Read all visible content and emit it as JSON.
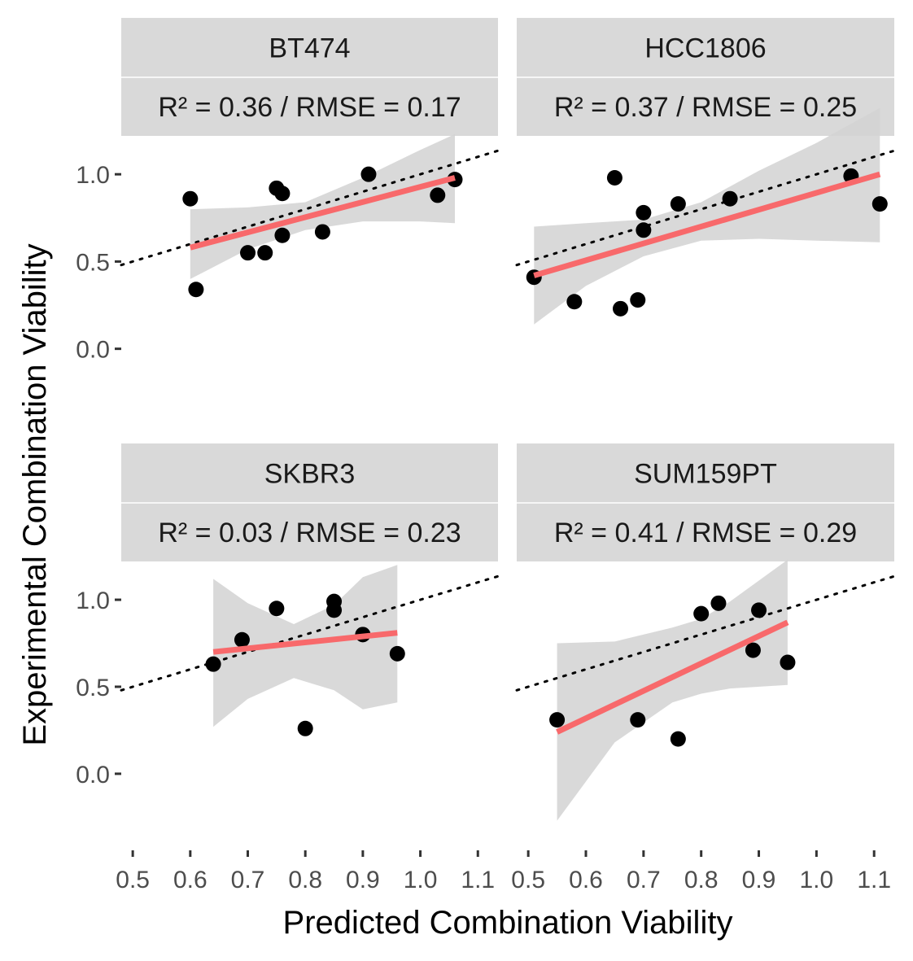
{
  "chart_data": {
    "type": "scatter",
    "xlabel": "Predicted Combination Viability",
    "ylabel": "Experimental Combination Viability",
    "xlim": [
      0.48,
      1.135
    ],
    "ylim": [
      -0.44,
      1.22
    ],
    "x_ticks": [
      0.5,
      0.6,
      0.7,
      0.8,
      0.9,
      1.0,
      1.1
    ],
    "x_tick_labels": [
      "0.5",
      "0.6",
      "0.7",
      "0.8",
      "0.9",
      "1.0",
      "1.1"
    ],
    "y_ticks": [
      0.0,
      0.5,
      1.0
    ],
    "y_tick_labels": [
      "0.0",
      "0.5",
      "1.0"
    ],
    "reference_line": "y = x",
    "grid": false,
    "panels": [
      {
        "name": "BT474",
        "stat": "R² = 0.36 / RMSE = 0.17",
        "points": [
          [
            0.6,
            0.86
          ],
          [
            0.61,
            0.34
          ],
          [
            0.7,
            0.55
          ],
          [
            0.73,
            0.55
          ],
          [
            0.75,
            0.92
          ],
          [
            0.76,
            0.89
          ],
          [
            0.76,
            0.65
          ],
          [
            0.83,
            0.67
          ],
          [
            0.91,
            1.0
          ],
          [
            1.03,
            0.88
          ],
          [
            1.06,
            0.97
          ]
        ],
        "fit": {
          "x": [
            0.6,
            1.06
          ],
          "y": [
            0.58,
            0.98
          ]
        },
        "band": {
          "x": [
            0.6,
            0.7,
            0.8,
            0.9,
            1.0,
            1.06
          ],
          "lower": [
            0.4,
            0.57,
            0.68,
            0.73,
            0.73,
            0.72
          ],
          "upper": [
            0.8,
            0.81,
            0.84,
            0.98,
            1.14,
            1.23
          ]
        }
      },
      {
        "name": "HCC1806",
        "stat": "R² = 0.37 / RMSE = 0.25",
        "points": [
          [
            0.51,
            0.41
          ],
          [
            0.58,
            0.27
          ],
          [
            0.65,
            0.98
          ],
          [
            0.66,
            0.23
          ],
          [
            0.69,
            0.28
          ],
          [
            0.7,
            0.68
          ],
          [
            0.7,
            0.78
          ],
          [
            0.76,
            0.83
          ],
          [
            0.85,
            0.86
          ],
          [
            1.06,
            0.99
          ],
          [
            1.11,
            0.83
          ]
        ],
        "fit": {
          "x": [
            0.51,
            1.11
          ],
          "y": [
            0.42,
            1.0
          ]
        },
        "band": {
          "x": [
            0.51,
            0.6,
            0.7,
            0.8,
            0.9,
            1.0,
            1.11
          ],
          "lower": [
            0.14,
            0.36,
            0.53,
            0.62,
            0.63,
            0.62,
            0.61
          ],
          "upper": [
            0.7,
            0.72,
            0.74,
            0.84,
            1.02,
            1.18,
            1.38
          ]
        }
      },
      {
        "name": "SKBR3",
        "stat": "R² = 0.03 / RMSE = 0.23",
        "points": [
          [
            0.64,
            0.63
          ],
          [
            0.69,
            0.77
          ],
          [
            0.75,
            0.95
          ],
          [
            0.8,
            0.26
          ],
          [
            0.85,
            0.99
          ],
          [
            0.85,
            0.94
          ],
          [
            0.9,
            0.8
          ],
          [
            0.96,
            0.69
          ]
        ],
        "fit": {
          "x": [
            0.64,
            0.96
          ],
          "y": [
            0.7,
            0.81
          ]
        },
        "band": {
          "x": [
            0.64,
            0.7,
            0.78,
            0.85,
            0.9,
            0.96
          ],
          "lower": [
            0.27,
            0.43,
            0.55,
            0.48,
            0.37,
            0.41
          ],
          "upper": [
            1.12,
            0.98,
            0.86,
            0.97,
            1.13,
            1.2
          ]
        }
      },
      {
        "name": "SUM159PT",
        "stat": "R² = 0.41 / RMSE = 0.29",
        "points": [
          [
            0.55,
            0.31
          ],
          [
            0.69,
            0.31
          ],
          [
            0.76,
            0.2
          ],
          [
            0.8,
            0.92
          ],
          [
            0.83,
            0.98
          ],
          [
            0.89,
            0.71
          ],
          [
            0.9,
            0.94
          ],
          [
            0.95,
            0.64
          ]
        ],
        "fit": {
          "x": [
            0.55,
            0.95
          ],
          "y": [
            0.24,
            0.87
          ]
        },
        "band": {
          "x": [
            0.55,
            0.65,
            0.75,
            0.8,
            0.85,
            0.95
          ],
          "lower": [
            -0.27,
            0.18,
            0.41,
            0.46,
            0.49,
            0.51
          ],
          "upper": [
            0.75,
            0.76,
            0.84,
            0.89,
            0.99,
            1.23
          ]
        }
      }
    ]
  }
}
